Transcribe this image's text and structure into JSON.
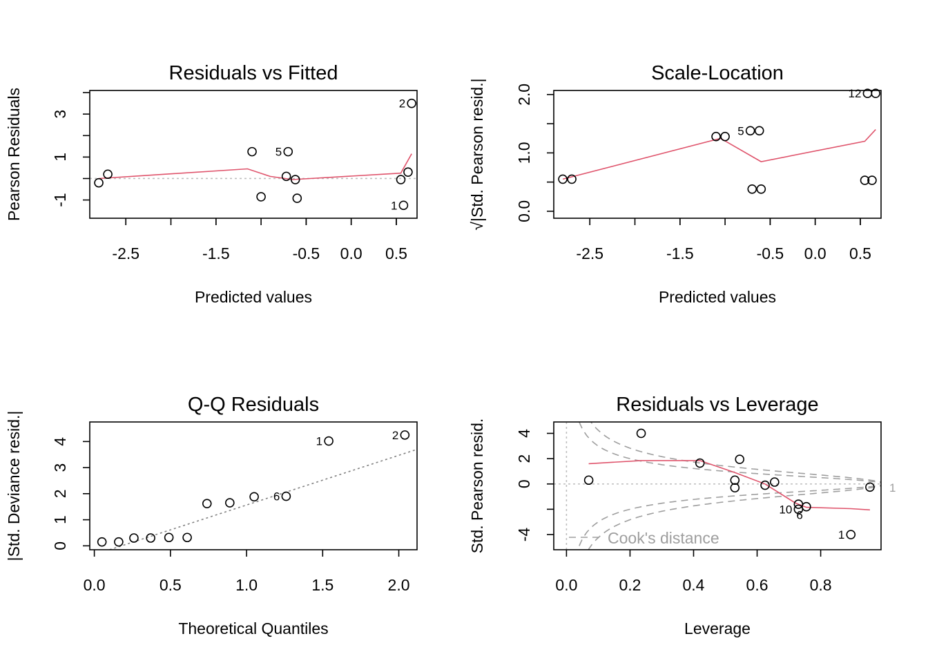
{
  "chart_data": [
    {
      "type": "scatter",
      "title": "Residuals vs Fitted",
      "xlabel": "Predicted values",
      "ylabel": "Pearson Residuals",
      "xlim": [
        -2.9,
        0.73
      ],
      "ylim": [
        -1.85,
        4.1
      ],
      "xticks": [
        -2.5,
        -1.5,
        -0.5,
        0.0,
        0.5
      ],
      "xtick_labels": [
        "-2.5",
        "-1.5",
        "-0.5",
        "0.0",
        "0.5"
      ],
      "yticks": [
        -1,
        1,
        3
      ],
      "ytick_labels": [
        "-1",
        "1",
        "3"
      ],
      "yminor_ticks": [
        -1,
        0,
        1,
        2,
        3,
        4
      ],
      "x": [
        -2.8,
        -2.7,
        -1.1,
        -1.0,
        -0.7,
        -0.72,
        -0.62,
        -0.6,
        0.55,
        0.58,
        0.63,
        0.67
      ],
      "y": [
        -0.2,
        0.2,
        1.25,
        -0.85,
        1.25,
        0.1,
        -0.05,
        -0.92,
        -0.05,
        -1.25,
        0.3,
        3.5
      ],
      "point_labels": [
        {
          "index": 4,
          "text": "5",
          "side": "left"
        },
        {
          "index": 9,
          "text": "1",
          "side": "left"
        },
        {
          "index": 11,
          "text": "2",
          "side": "left"
        }
      ],
      "smooth": {
        "x": [
          -2.8,
          -1.15,
          -0.9,
          -0.65,
          0.55,
          0.67
        ],
        "y": [
          0.0,
          0.45,
          0.1,
          -0.05,
          0.25,
          1.15
        ]
      },
      "reference_line": {
        "kind": "horizontal",
        "y": 0
      }
    },
    {
      "type": "scatter",
      "title": "Scale-Location",
      "xlabel": "Predicted values",
      "ylabel": "√|Std. Pearson resid.|",
      "xlim": [
        -2.9,
        0.73
      ],
      "ylim": [
        -0.12,
        2.07
      ],
      "xticks": [
        -2.5,
        -1.5,
        -0.5,
        0.0,
        0.5
      ],
      "xtick_labels": [
        "-2.5",
        "-1.5",
        "-0.5",
        "0.0",
        "0.5"
      ],
      "yticks": [
        0.0,
        1.0,
        2.0
      ],
      "ytick_labels": [
        "0.0",
        "1.0",
        "2.0"
      ],
      "yminor_ticks": [
        0.0,
        0.5,
        1.0,
        1.5,
        2.0
      ],
      "x": [
        -2.8,
        -2.7,
        -1.1,
        -1.0,
        -0.7,
        -0.6,
        -0.72,
        -0.62,
        0.55,
        0.63,
        0.58,
        0.67
      ],
      "y": [
        0.55,
        0.55,
        1.28,
        1.28,
        0.38,
        0.38,
        1.38,
        1.38,
        0.53,
        0.53,
        2.02,
        2.02
      ],
      "point_labels": [
        {
          "index": 6,
          "text": "5",
          "side": "left"
        },
        {
          "index": 10,
          "text": "12",
          "side": "left"
        }
      ],
      "smooth": {
        "x": [
          -2.8,
          -1.05,
          -0.6,
          0.55,
          0.67
        ],
        "y": [
          0.55,
          1.25,
          0.85,
          1.2,
          1.4
        ]
      }
    },
    {
      "type": "scatter",
      "title": "Q-Q Residuals",
      "xlabel": "Theoretical Quantiles",
      "ylabel": "|Std. Deviance resid.|",
      "xlim": [
        -0.03,
        2.12
      ],
      "ylim": [
        -0.15,
        4.75
      ],
      "xticks": [
        0.0,
        0.5,
        1.0,
        1.5,
        2.0
      ],
      "xtick_labels": [
        "0.0",
        "0.5",
        "1.0",
        "1.5",
        "2.0"
      ],
      "yticks": [
        0,
        1,
        2,
        3,
        4
      ],
      "ytick_labels": [
        "0",
        "1",
        "2",
        "3",
        "4"
      ],
      "x": [
        0.05,
        0.16,
        0.26,
        0.37,
        0.49,
        0.61,
        0.74,
        0.89,
        1.05,
        1.26,
        1.54,
        2.04
      ],
      "y": [
        0.15,
        0.15,
        0.3,
        0.3,
        0.32,
        0.32,
        1.62,
        1.65,
        1.88,
        1.9,
        4.02,
        4.25
      ],
      "point_labels": [
        {
          "index": 9,
          "text": "6",
          "side": "left"
        },
        {
          "index": 10,
          "text": "1",
          "side": "left"
        },
        {
          "index": 11,
          "text": "2",
          "side": "left"
        }
      ],
      "reference_line": {
        "kind": "qq",
        "x": [
          0.1,
          2.12
        ],
        "y": [
          -0.15,
          3.7
        ]
      }
    },
    {
      "type": "scatter",
      "title": "Residuals vs Leverage",
      "xlabel": "Leverage",
      "ylabel": "Std. Pearson resid.",
      "xlim": [
        -0.04,
        0.99
      ],
      "ylim": [
        -5.2,
        4.9
      ],
      "xticks": [
        0.0,
        0.2,
        0.4,
        0.6,
        0.8
      ],
      "xtick_labels": [
        "0.0",
        "0.2",
        "0.4",
        "0.6",
        "0.8"
      ],
      "yticks": [
        -4,
        -2,
        0,
        2,
        4
      ],
      "ytick_labels": [
        "-4",
        "-2",
        "0",
        "2",
        "4"
      ],
      "ytick_labels_shown": [
        -4,
        0,
        2,
        4
      ],
      "x": [
        0.07,
        0.235,
        0.42,
        0.53,
        0.53,
        0.545,
        0.625,
        0.655,
        0.73,
        0.73,
        0.755,
        0.895,
        0.955
      ],
      "y": [
        0.3,
        4.0,
        1.65,
        0.3,
        -0.3,
        1.95,
        -0.1,
        0.15,
        -1.6,
        -2.0,
        -1.8,
        -4.0,
        -0.25
      ],
      "point_labels": [
        {
          "index": 9,
          "text": "10",
          "side": "left"
        },
        {
          "index": 9,
          "text": "6",
          "side": "right-below"
        },
        {
          "index": 11,
          "text": "1",
          "side": "left"
        }
      ],
      "smooth": {
        "x": [
          0.07,
          0.235,
          0.42,
          0.53,
          0.625,
          0.72,
          0.755,
          0.895,
          0.955
        ],
        "y": [
          1.6,
          1.85,
          1.85,
          0.9,
          0.0,
          -1.5,
          -1.85,
          -1.95,
          -2.05
        ]
      },
      "reference_lines": [
        {
          "kind": "horizontal",
          "y": 0
        },
        {
          "kind": "vertical",
          "x": 0
        }
      ],
      "cooks_distance": {
        "levels": [
          0.5,
          1
        ],
        "label": "1",
        "legend": "Cook's distance"
      }
    }
  ]
}
